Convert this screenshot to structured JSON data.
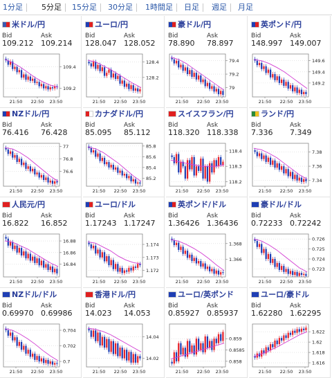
{
  "tabs": [
    {
      "label": "1分足",
      "active": false
    },
    {
      "label": "5分足",
      "active": true
    },
    {
      "label": "15分足",
      "active": false
    },
    {
      "label": "30分足",
      "active": false
    },
    {
      "label": "1時間足",
      "active": false
    },
    {
      "label": "日足",
      "active": false
    },
    {
      "label": "週足",
      "active": false
    },
    {
      "label": "月足",
      "active": false
    }
  ],
  "bid_label": "Bid",
  "ask_label": "Ask",
  "colors": {
    "up": "#e8232a",
    "down": "#1f3fb4",
    "ma": "#d23dd2",
    "title": "#2a3e9a",
    "tab": "#2a57a8"
  },
  "pairs": [
    {
      "name": "米ドル/円",
      "flags": [
        "#3b5bb0",
        "#e02020"
      ],
      "bid": "109.212",
      "ask": "109.214",
      "y_ticks": [
        "109.4",
        "109.2"
      ],
      "x_ticks": [
        "21:50",
        "22:50",
        "23:50"
      ],
      "chart_data": {
        "type": "candlestick",
        "ylim": [
          109.12,
          109.52
        ],
        "ma": [
          109.47,
          109.44,
          109.4,
          109.35,
          109.3,
          109.26,
          109.23,
          109.21
        ],
        "closes": [
          109.46,
          109.42,
          109.45,
          109.38,
          109.4,
          109.35,
          109.37,
          109.3,
          109.33,
          109.28,
          109.31,
          109.27,
          109.29,
          109.25,
          109.26,
          109.22,
          109.24,
          109.2,
          109.22,
          109.19,
          109.21,
          109.2,
          109.22,
          109.21
        ]
      }
    },
    {
      "name": "ユーロ/円",
      "flags": [
        "#1f3fb4",
        "#e02020"
      ],
      "bid": "128.047",
      "ask": "128.052",
      "y_ticks": [
        "128.4",
        "128.2"
      ],
      "x_ticks": [
        "21:50",
        "22:50",
        "23:50"
      ],
      "chart_data": {
        "type": "candlestick",
        "ylim": [
          127.95,
          128.5
        ],
        "ma": [
          128.42,
          128.4,
          128.35,
          128.3,
          128.24,
          128.18,
          128.12,
          128.07
        ],
        "closes": [
          128.38,
          128.34,
          128.4,
          128.31,
          128.36,
          128.28,
          128.33,
          128.22,
          128.26,
          128.3,
          128.2,
          128.25,
          128.18,
          128.22,
          128.12,
          128.16,
          128.08,
          128.12,
          128.05,
          128.1,
          128.03,
          128.06,
          128.02,
          128.05
        ]
      }
    },
    {
      "name": "豪ドル/円",
      "flags": [
        "#1f3fb4",
        "#e02020"
      ],
      "bid": "78.890",
      "ask": "78.897",
      "y_ticks": [
        "79.4",
        "79.2",
        "79"
      ],
      "x_ticks": [
        "21:50",
        "22:50",
        "23:50"
      ],
      "chart_data": {
        "type": "candlestick",
        "ylim": [
          78.86,
          79.5
        ],
        "ma": [
          79.45,
          79.42,
          79.36,
          79.28,
          79.2,
          79.12,
          79.04,
          78.96
        ],
        "closes": [
          79.42,
          79.36,
          79.4,
          79.3,
          79.34,
          79.25,
          79.3,
          79.2,
          79.26,
          79.16,
          79.22,
          79.12,
          79.18,
          79.08,
          79.12,
          79.02,
          79.07,
          78.98,
          79.02,
          78.94,
          78.98,
          78.9,
          78.95,
          78.89
        ]
      }
    },
    {
      "name": "英ポンド/円",
      "flags": [
        "#1f3fb4",
        "#e02020"
      ],
      "bid": "148.997",
      "ask": "149.007",
      "y_ticks": [
        "149.6",
        "149.4",
        "149.2"
      ],
      "x_ticks": [
        "21:50",
        "22:50",
        "23:50"
      ],
      "chart_data": {
        "type": "candlestick",
        "ylim": [
          148.95,
          149.72
        ],
        "ma": [
          149.62,
          149.6,
          149.55,
          149.48,
          149.4,
          149.3,
          149.2,
          149.1
        ],
        "closes": [
          149.6,
          149.52,
          149.56,
          149.45,
          149.5,
          149.38,
          149.44,
          149.3,
          149.36,
          149.25,
          149.32,
          149.2,
          149.26,
          149.15,
          149.22,
          149.1,
          149.16,
          149.05,
          149.12,
          149.02,
          149.08,
          149.0,
          149.04,
          149.0
        ]
      }
    },
    {
      "name": "NZドル/円",
      "flags": [
        "#1f3fb4",
        "#e02020"
      ],
      "bid": "76.416",
      "ask": "76.428",
      "y_ticks": [
        "77",
        "76.8",
        "76.6"
      ],
      "x_ticks": [
        "21:50",
        "22:50",
        "23:50"
      ],
      "chart_data": {
        "type": "candlestick",
        "ylim": [
          76.36,
          77.05
        ],
        "ma": [
          76.98,
          76.96,
          76.9,
          76.82,
          76.72,
          76.62,
          76.52,
          76.44
        ],
        "closes": [
          76.95,
          76.88,
          76.92,
          76.82,
          76.86,
          76.75,
          76.8,
          76.7,
          76.74,
          76.64,
          76.68,
          76.6,
          76.64,
          76.55,
          76.58,
          76.5,
          76.54,
          76.46,
          76.5,
          76.42,
          76.45,
          76.4,
          76.44,
          76.42
        ]
      }
    },
    {
      "name": "カナダドル/円",
      "flags": [
        "#e02020",
        "#ffffff"
      ],
      "bid": "85.095",
      "ask": "85.112",
      "y_ticks": [
        "85.8",
        "85.6",
        "85.4",
        "85.2"
      ],
      "x_ticks": [
        "21:50",
        "22:50",
        "23:50"
      ],
      "chart_data": {
        "type": "candlestick",
        "ylim": [
          85.05,
          85.85
        ],
        "ma": [
          85.78,
          85.75,
          85.68,
          85.58,
          85.48,
          85.36,
          85.24,
          85.14
        ],
        "closes": [
          85.76,
          85.68,
          85.72,
          85.6,
          85.66,
          85.52,
          85.58,
          85.46,
          85.5,
          85.4,
          85.45,
          85.36,
          85.4,
          85.3,
          85.34,
          85.25,
          85.28,
          85.2,
          85.24,
          85.14,
          85.18,
          85.1,
          85.12,
          85.1
        ]
      }
    },
    {
      "name": "スイスフラン/円",
      "flags": [
        "#e02020",
        "#e02020"
      ],
      "bid": "118.320",
      "ask": "118.338",
      "y_ticks": [
        "118.4",
        "118.3",
        "118.2"
      ],
      "x_ticks": [
        "21:50",
        "22:50",
        "23:50"
      ],
      "chart_data": {
        "type": "candlestick",
        "ylim": [
          118.17,
          118.45
        ],
        "ma": [
          118.34,
          118.33,
          118.32,
          118.31,
          118.3,
          118.3,
          118.3,
          118.31
        ],
        "closes": [
          118.36,
          118.32,
          118.38,
          118.26,
          118.33,
          118.3,
          118.22,
          118.34,
          118.28,
          118.36,
          118.24,
          118.3,
          118.27,
          118.35,
          118.22,
          118.3,
          118.2,
          118.32,
          118.26,
          118.34,
          118.3,
          118.36,
          118.31,
          118.33
        ]
      }
    },
    {
      "name": "ランド/円",
      "flags": [
        "#2a8a3a",
        "#f0c020"
      ],
      "bid": "7.336",
      "ask": "7.349",
      "y_ticks": [
        "7.38",
        "7.36",
        "7.34"
      ],
      "x_ticks": [
        "21:50",
        "22:50",
        "23:50"
      ],
      "chart_data": {
        "type": "candlestick",
        "ylim": [
          7.332,
          7.392
        ],
        "ma": [
          7.385,
          7.383,
          7.378,
          7.372,
          7.364,
          7.356,
          7.348,
          7.342
        ],
        "closes": [
          7.38,
          7.374,
          7.378,
          7.37,
          7.375,
          7.366,
          7.372,
          7.362,
          7.368,
          7.358,
          7.364,
          7.355,
          7.36,
          7.35,
          7.356,
          7.346,
          7.352,
          7.342,
          7.348,
          7.34,
          7.344,
          7.338,
          7.342,
          7.339
        ]
      }
    },
    {
      "name": "人民元/円",
      "flags": [
        "#e02020",
        "#e02020"
      ],
      "bid": "16.822",
      "ask": "16.852",
      "y_ticks": [
        "16.88",
        "16.86",
        "16.84"
      ],
      "x_ticks": [
        "21:50",
        "22:50",
        "23:50"
      ],
      "chart_data": {
        "type": "candlestick",
        "ylim": [
          16.818,
          16.892
        ],
        "ma": [
          16.88,
          16.878,
          16.872,
          16.866,
          16.858,
          16.85,
          16.842,
          16.836
        ],
        "closes": [
          16.884,
          16.872,
          16.878,
          16.866,
          16.872,
          16.86,
          16.868,
          16.855,
          16.862,
          16.85,
          16.858,
          16.846,
          16.853,
          16.842,
          16.85,
          16.838,
          16.846,
          16.834,
          16.84,
          16.83,
          16.836,
          16.826,
          16.832,
          16.824
        ]
      }
    },
    {
      "name": "ユーロ/ドル",
      "flags": [
        "#1f3fb4",
        "#e02020"
      ],
      "bid": "1.17243",
      "ask": "1.17247",
      "y_ticks": [
        "1.174",
        "1.173",
        "1.172"
      ],
      "x_ticks": [
        "21:50",
        "22:50",
        "23:50"
      ],
      "chart_data": {
        "type": "candlestick",
        "ylim": [
          1.1715,
          1.1748
        ],
        "ma": [
          1.1742,
          1.1741,
          1.1738,
          1.1735,
          1.1731,
          1.1728,
          1.1726,
          1.1725
        ],
        "closes": [
          1.174,
          1.1737,
          1.1739,
          1.1733,
          1.1736,
          1.173,
          1.1734,
          1.1727,
          1.1731,
          1.1724,
          1.1728,
          1.1721,
          1.1725,
          1.1719,
          1.1722,
          1.1718,
          1.172,
          1.1719,
          1.1722,
          1.172,
          1.1723,
          1.1722,
          1.1725,
          1.1724
        ]
      }
    },
    {
      "name": "英ポンド/ドル",
      "flags": [
        "#1f3fb4",
        "#e02020"
      ],
      "bid": "1.36426",
      "ask": "1.36436",
      "y_ticks": [
        "1.368",
        "1.366"
      ],
      "x_ticks": [
        "21:50",
        "22:50",
        "23:50"
      ],
      "chart_data": {
        "type": "candlestick",
        "ylim": [
          1.3638,
          1.3692
        ],
        "ma": [
          1.3685,
          1.3683,
          1.3679,
          1.3674,
          1.3668,
          1.3661,
          1.3653,
          1.3646
        ],
        "closes": [
          1.3684,
          1.3678,
          1.3681,
          1.3672,
          1.3676,
          1.3667,
          1.3671,
          1.3662,
          1.3666,
          1.3658,
          1.3662,
          1.3655,
          1.3658,
          1.3651,
          1.3655,
          1.3648,
          1.3651,
          1.3645,
          1.3648,
          1.3642,
          1.3646,
          1.3641,
          1.3644,
          1.3643
        ]
      }
    },
    {
      "name": "豪ドル/ドル",
      "flags": [
        "#1f3fb4",
        "#1f3fb4"
      ],
      "bid": "0.72233",
      "ask": "0.72242",
      "y_ticks": [
        "0.726",
        "0.725",
        "0.724",
        "0.723"
      ],
      "x_ticks": [
        "21:50",
        "22:50",
        "23:50"
      ],
      "chart_data": {
        "type": "candlestick",
        "ylim": [
          0.7222,
          0.7265
        ],
        "ma": [
          0.726,
          0.7258,
          0.7254,
          0.7249,
          0.7243,
          0.7237,
          0.7231,
          0.7227
        ],
        "closes": [
          0.7258,
          0.7252,
          0.7255,
          0.7246,
          0.725,
          0.724,
          0.7245,
          0.7236,
          0.724,
          0.7232,
          0.7236,
          0.7229,
          0.7233,
          0.7227,
          0.723,
          0.7225,
          0.7228,
          0.7224,
          0.7227,
          0.7223,
          0.7226,
          0.7224,
          0.7225,
          0.7223
        ]
      }
    },
    {
      "name": "NZドル/ドル",
      "flags": [
        "#1f3fb4",
        "#1f3fb4"
      ],
      "bid": "0.69970",
      "ask": "0.69986",
      "y_ticks": [
        "0.704",
        "0.702",
        "0.7"
      ],
      "x_ticks": [
        "21:50",
        "22:50",
        "23:50"
      ],
      "chart_data": {
        "type": "candlestick",
        "ylim": [
          0.6993,
          0.7048
        ],
        "ma": [
          0.7042,
          0.704,
          0.7035,
          0.7029,
          0.7022,
          0.7014,
          0.7007,
          0.7001
        ],
        "closes": [
          0.704,
          0.7033,
          0.7037,
          0.7027,
          0.7031,
          0.702,
          0.7025,
          0.7015,
          0.702,
          0.701,
          0.7015,
          0.7006,
          0.701,
          0.7002,
          0.7007,
          0.7,
          0.7004,
          0.6998,
          0.7002,
          0.6997,
          0.7,
          0.6996,
          0.6998,
          0.6997
        ]
      }
    },
    {
      "name": "香港ドル/円",
      "flags": [
        "#e02020",
        "#e02020"
      ],
      "bid": "14.023",
      "ask": "14.053",
      "y_ticks": [
        "14.04",
        "14.02"
      ],
      "x_ticks": [
        "21:50",
        "22:50",
        "23:50"
      ],
      "chart_data": {
        "type": "candlestick",
        "ylim": [
          14.012,
          14.052
        ],
        "ma": [
          14.048,
          14.047,
          14.045,
          14.042,
          14.038,
          14.034,
          14.03,
          14.026
        ],
        "closes": [
          14.046,
          14.04,
          14.046,
          14.036,
          14.044,
          14.032,
          14.04,
          14.03,
          14.038,
          14.026,
          14.036,
          14.024,
          14.034,
          14.022,
          14.03,
          14.02,
          14.028,
          14.018,
          14.026,
          14.016,
          14.024,
          14.016,
          14.022,
          14.02
        ]
      }
    },
    {
      "name": "ユーロ/英ポンド",
      "flags": [
        "#1f3fb4",
        "#1f3fb4"
      ],
      "bid": "0.85927",
      "ask": "0.85937",
      "y_ticks": [
        "0.859",
        "0.8585",
        "0.858"
      ],
      "x_ticks": [
        "21:50",
        "22:50",
        "23:50"
      ],
      "chart_data": {
        "type": "candlestick",
        "ylim": [
          0.85775,
          0.85965
        ],
        "ma": [
          0.8581,
          0.8582,
          0.8583,
          0.8584,
          0.8585,
          0.8586,
          0.8587,
          0.8588
        ],
        "closes": [
          0.8579,
          0.8584,
          0.858,
          0.8588,
          0.8583,
          0.8586,
          0.8582,
          0.8589,
          0.8584,
          0.8587,
          0.8583,
          0.859,
          0.8585,
          0.8588,
          0.8584,
          0.8591,
          0.8586,
          0.8589,
          0.8585,
          0.859,
          0.8588,
          0.8592,
          0.8589,
          0.8593
        ]
      }
    },
    {
      "name": "ユーロ/豪ドル",
      "flags": [
        "#1f3fb4",
        "#1f3fb4"
      ],
      "bid": "1.62280",
      "ask": "1.62295",
      "y_ticks": [
        "1.622",
        "1.62",
        "1.618",
        "1.616"
      ],
      "x_ticks": [
        "21:50",
        "22:50",
        "23:50"
      ],
      "chart_data": {
        "type": "candlestick",
        "ylim": [
          1.6152,
          1.6235
        ],
        "ma": [
          1.6172,
          1.6177,
          1.6183,
          1.619,
          1.6198,
          1.6206,
          1.6214,
          1.622
        ],
        "closes": [
          1.617,
          1.6178,
          1.6172,
          1.6184,
          1.6178,
          1.619,
          1.6184,
          1.6196,
          1.619,
          1.6203,
          1.6196,
          1.6208,
          1.6203,
          1.6213,
          1.6208,
          1.6218,
          1.6214,
          1.6222,
          1.6218,
          1.6225,
          1.622,
          1.6226,
          1.6223,
          1.6228
        ]
      }
    }
  ]
}
